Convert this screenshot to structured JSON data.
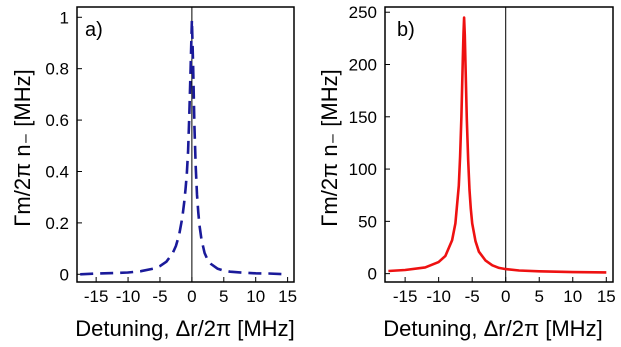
{
  "chart_data": [
    {
      "type": "line",
      "panel_label": "a)",
      "xlabel": "Detuning, Δr/2π [MHz]",
      "ylabel": "Γm/2π n₋ [MHz]",
      "xlim": [
        -18,
        16
      ],
      "ylim": [
        -0.03,
        1.04
      ],
      "xticks": [
        -15,
        -10,
        -5,
        0,
        5,
        10,
        15
      ],
      "xtick_labels": [
        "-15",
        "-10",
        "-5",
        "0",
        "5",
        "10",
        "15"
      ],
      "yticks": [
        0,
        0.2,
        0.4,
        0.6,
        0.8,
        1
      ],
      "ytick_labels": [
        "0",
        "0.2",
        "0.4",
        "0.6",
        "0.8",
        "1"
      ],
      "vline_x": 0,
      "series": [
        {
          "style": "dashed",
          "color": "#1a1a9a",
          "x": [
            -17.5,
            -15,
            -12,
            -10,
            -8,
            -6,
            -5,
            -4,
            -3,
            -2.5,
            -2,
            -1.5,
            -1.2,
            -1,
            -0.8,
            -0.6,
            -0.4,
            -0.2,
            0,
            0.2,
            0.4,
            0.6,
            0.8,
            1,
            1.2,
            1.5,
            2,
            2.5,
            3,
            4,
            5,
            6,
            8,
            10,
            12,
            15
          ],
          "y": [
            0.0,
            0.003,
            0.005,
            0.007,
            0.012,
            0.022,
            0.032,
            0.049,
            0.082,
            0.11,
            0.153,
            0.22,
            0.28,
            0.33,
            0.39,
            0.48,
            0.62,
            0.8,
            0.99,
            0.8,
            0.58,
            0.42,
            0.31,
            0.24,
            0.19,
            0.135,
            0.083,
            0.055,
            0.04,
            0.022,
            0.014,
            0.01,
            0.006,
            0.004,
            0.003,
            0.0
          ]
        }
      ]
    },
    {
      "type": "line",
      "panel_label": "b)",
      "xlabel": "Detuning, Δr/2π [MHz]",
      "ylabel": "Γm/2π n₋ [MHz]",
      "xlim": [
        -18,
        16
      ],
      "ylim": [
        -8,
        255
      ],
      "xticks": [
        -15,
        -10,
        -5,
        0,
        5,
        10,
        15
      ],
      "xtick_labels": [
        "-15",
        "-10",
        "-5",
        "0",
        "5",
        "10",
        "15"
      ],
      "yticks": [
        0,
        50,
        100,
        150,
        200,
        250
      ],
      "ytick_labels": [
        "0",
        "50",
        "100",
        "150",
        "200",
        "250"
      ],
      "vline_x": 0,
      "series": [
        {
          "style": "solid",
          "color": "#ee1111",
          "x": [
            -17.5,
            -15,
            -12,
            -10,
            -9,
            -8,
            -7.5,
            -7,
            -6.8,
            -6.6,
            -6.4,
            -6.3,
            -6.2,
            -6.1,
            -6,
            -5.8,
            -5.6,
            -5.4,
            -5.2,
            -5,
            -4.5,
            -4,
            -3,
            -2,
            -1,
            0,
            2,
            5,
            10,
            15
          ],
          "y": [
            2.5,
            3.5,
            6,
            11,
            17,
            32,
            48,
            84,
            112,
            150,
            205,
            230,
            245,
            228,
            200,
            148,
            108,
            80,
            62,
            48,
            31,
            21,
            12.5,
            8,
            5.5,
            4.3,
            3,
            2.2,
            1.5,
            1.2
          ]
        }
      ]
    }
  ]
}
